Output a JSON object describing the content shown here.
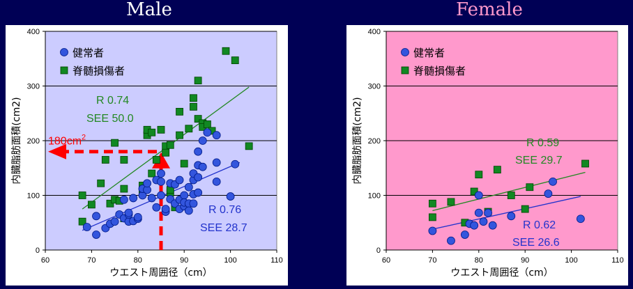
{
  "titles": {
    "male": "Male",
    "female": "Female"
  },
  "colors": {
    "page_bg": "#000055",
    "male_plot_bg": "#ccccff",
    "female_plot_bg": "#ff99cc",
    "healthy": "#3355dd",
    "sci": "#118822",
    "trend_healthy": "#2233cc",
    "trend_sci": "#228822",
    "highlight": "#ff0000"
  },
  "chart_data": [
    {
      "type": "scatter",
      "panel": "male",
      "xlabel": "ウエスト周囲径（cm）",
      "ylabel": "内臓脂肪面積(cm2)",
      "xlim": [
        60,
        110
      ],
      "ylim": [
        0,
        400
      ],
      "xticks": [
        60,
        70,
        80,
        90,
        100,
        110
      ],
      "yticks": [
        0,
        100,
        200,
        300,
        400
      ],
      "grid": "horizontal",
      "legend_position": "top-left",
      "series": [
        {
          "name": "健常者",
          "marker": "circle",
          "points": [
            [
              69,
              42
            ],
            [
              71,
              28
            ],
            [
              71,
              62
            ],
            [
              73,
              40
            ],
            [
              74,
              48
            ],
            [
              75,
              52
            ],
            [
              76,
              65
            ],
            [
              77,
              58
            ],
            [
              77,
              92
            ],
            [
              78,
              52
            ],
            [
              78,
              65
            ],
            [
              78,
              68
            ],
            [
              79,
              53
            ],
            [
              79,
              95
            ],
            [
              80,
              57
            ],
            [
              80,
              60
            ],
            [
              81,
              100
            ],
            [
              81,
              112
            ],
            [
              82,
              110
            ],
            [
              82,
              122
            ],
            [
              83,
              95
            ],
            [
              84,
              128
            ],
            [
              84,
              78
            ],
            [
              85,
              140
            ],
            [
              85,
              125
            ],
            [
              85,
              100
            ],
            [
              86,
              70
            ],
            [
              86,
              75
            ],
            [
              87,
              122
            ],
            [
              87,
              93
            ],
            [
              88,
              85
            ],
            [
              88,
              120
            ],
            [
              89,
              92
            ],
            [
              89,
              75
            ],
            [
              89,
              128
            ],
            [
              90,
              100
            ],
            [
              90,
              80
            ],
            [
              90,
              87
            ],
            [
              91,
              85
            ],
            [
              91,
              72
            ],
            [
              91,
              115
            ],
            [
              92,
              85
            ],
            [
              92,
              102
            ],
            [
              92,
              128
            ],
            [
              92,
              140
            ],
            [
              93,
              105
            ],
            [
              93,
              133
            ],
            [
              93,
              155
            ],
            [
              93,
              180
            ],
            [
              94,
              152
            ],
            [
              94,
              200
            ],
            [
              95,
              215
            ],
            [
              97,
              210
            ],
            [
              97,
              125
            ],
            [
              97,
              160
            ],
            [
              100,
              98
            ],
            [
              101,
              157
            ]
          ]
        },
        {
          "name": "脊髄損傷者",
          "marker": "square",
          "points": [
            [
              68,
              100
            ],
            [
              68,
              52
            ],
            [
              70,
              83
            ],
            [
              72,
              122
            ],
            [
              73,
              165
            ],
            [
              74,
              85
            ],
            [
              75,
              92
            ],
            [
              75,
              196
            ],
            [
              76,
              90
            ],
            [
              77,
              112
            ],
            [
              77,
              165
            ],
            [
              77,
              58
            ],
            [
              81,
              118
            ],
            [
              81,
              108
            ],
            [
              82,
              210
            ],
            [
              82,
              220
            ],
            [
              83,
              215
            ],
            [
              83,
              140
            ],
            [
              84,
              165
            ],
            [
              85,
              220
            ],
            [
              86,
              190
            ],
            [
              86,
              178
            ],
            [
              87,
              192
            ],
            [
              87,
              105
            ],
            [
              87,
              110
            ],
            [
              88,
              78
            ],
            [
              89,
              253
            ],
            [
              89,
              210
            ],
            [
              90,
              158
            ],
            [
              91,
              222
            ],
            [
              92,
              278
            ],
            [
              92,
              262
            ],
            [
              93,
              310
            ],
            [
              93,
              240
            ],
            [
              94,
              232
            ],
            [
              94,
              225
            ],
            [
              95,
              230
            ],
            [
              96,
              218
            ],
            [
              99,
              364
            ],
            [
              101,
              347
            ],
            [
              104,
              190
            ]
          ]
        }
      ],
      "trendlines": [
        {
          "series": "健常者",
          "from": [
            68,
            36
          ],
          "to": [
            102,
            160
          ]
        },
        {
          "series": "脊髄損傷者",
          "from": [
            68,
            75
          ],
          "to": [
            104,
            298
          ]
        }
      ],
      "annotations": {
        "sci_r": "R 0.74",
        "sci_see": "SEE 50.0",
        "healthy_r": "R 0.76",
        "healthy_see": "SEE 28.7",
        "threshold_text": "180cm",
        "threshold_sup": "2",
        "threshold_y": 180,
        "threshold_x": 85
      }
    },
    {
      "type": "scatter",
      "panel": "female",
      "xlabel": "ウエスト周囲径（cm）",
      "ylabel": "内臓脂肪面積(cm2)",
      "xlim": [
        60,
        110
      ],
      "ylim": [
        0,
        400
      ],
      "xticks": [
        60,
        70,
        80,
        90,
        100,
        110
      ],
      "yticks": [
        0,
        100,
        200,
        300,
        400
      ],
      "grid": "horizontal",
      "legend_position": "top-left",
      "series": [
        {
          "name": "健常者",
          "marker": "circle",
          "points": [
            [
              70,
              35
            ],
            [
              74,
              17
            ],
            [
              77,
              28
            ],
            [
              78,
              48
            ],
            [
              79,
              45
            ],
            [
              80,
              68
            ],
            [
              80,
              100
            ],
            [
              81,
              52
            ],
            [
              82,
              68
            ],
            [
              83,
              45
            ],
            [
              87,
              62
            ],
            [
              95,
              103
            ],
            [
              96,
              125
            ],
            [
              102,
              57
            ]
          ]
        },
        {
          "name": "脊髄損傷者",
          "marker": "square",
          "points": [
            [
              70,
              85
            ],
            [
              70,
              60
            ],
            [
              74,
              88
            ],
            [
              77,
              50
            ],
            [
              79,
              107
            ],
            [
              80,
              138
            ],
            [
              82,
              70
            ],
            [
              84,
              147
            ],
            [
              87,
              100
            ],
            [
              90,
              75
            ],
            [
              91,
              115
            ],
            [
              103,
              158
            ]
          ]
        }
      ],
      "trendlines": [
        {
          "series": "健常者",
          "from": [
            70,
            38
          ],
          "to": [
            102,
            98
          ]
        },
        {
          "series": "脊髄損傷者",
          "from": [
            70,
            72
          ],
          "to": [
            103,
            142
          ]
        }
      ],
      "annotations": {
        "sci_r": "R  0.59",
        "sci_see": "SEE 29.7",
        "healthy_r": "R  0.62",
        "healthy_see": "SEE 26.6"
      }
    }
  ]
}
